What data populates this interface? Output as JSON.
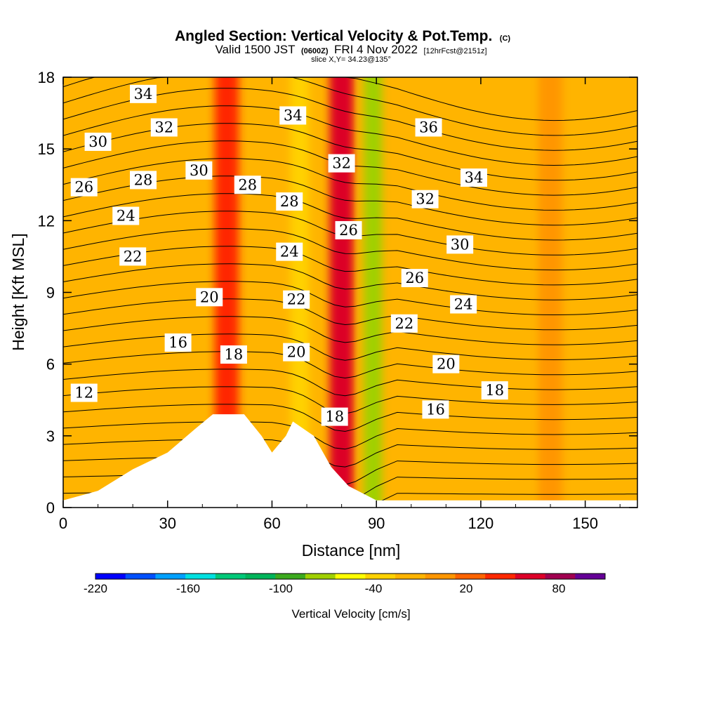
{
  "title": {
    "main": "Angled Section: Vertical Velocity & Pot.Temp.",
    "units_tag": "(C)",
    "valid_prefix": "Valid 1500 JST",
    "utc_tag": "(0600Z)",
    "valid_date": "FRI 4 Nov 2022",
    "forecast_tag": "[12hrFcst@2151z]",
    "slice": "slice X,Y= 34.23@135°"
  },
  "chart_data": {
    "type": "heatmap",
    "xlabel": "Distance [nm]",
    "ylabel": "Height [Kft MSL]",
    "xlim": [
      0,
      165
    ],
    "ylim": [
      0,
      18
    ],
    "x_ticks": [
      "0",
      "30",
      "60",
      "90",
      "120",
      "150"
    ],
    "y_ticks": [
      "0",
      "3",
      "6",
      "9",
      "12",
      "15",
      "18"
    ],
    "colorbar": {
      "title": "Vertical Velocity [cm/s]",
      "tick_labels": [
        "-220",
        "-160",
        "-100",
        "-40",
        "20",
        "80"
      ],
      "tick_values": [
        -220,
        -160,
        -100,
        -40,
        20,
        80
      ],
      "range": [
        -220,
        110
      ],
      "colors": [
        "#0000ff",
        "#0050ff",
        "#00a0ff",
        "#00e0e0",
        "#00c878",
        "#00b45a",
        "#3caa1e",
        "#a0d000",
        "#ffff00",
        "#ffd200",
        "#ffb400",
        "#ff9600",
        "#ff6400",
        "#ff2800",
        "#dc0028",
        "#a00050",
        "#640096"
      ]
    },
    "velocity_bands": [
      {
        "x_center": 47,
        "value": 40
      },
      {
        "x_center": 80,
        "value": 60
      },
      {
        "x_center": 89,
        "value": -70
      },
      {
        "x_center": 68,
        "value": -40
      },
      {
        "x_center": 140,
        "value": 10
      }
    ],
    "terrain": [
      {
        "x": 0,
        "y": 0.3
      },
      {
        "x": 10,
        "y": 0.7
      },
      {
        "x": 20,
        "y": 1.6
      },
      {
        "x": 30,
        "y": 2.3
      },
      {
        "x": 38,
        "y": 3.3
      },
      {
        "x": 43,
        "y": 3.9
      },
      {
        "x": 52,
        "y": 3.9
      },
      {
        "x": 57,
        "y": 3.0
      },
      {
        "x": 60,
        "y": 2.3
      },
      {
        "x": 64,
        "y": 3.0
      },
      {
        "x": 66,
        "y": 3.6
      },
      {
        "x": 72,
        "y": 3.0
      },
      {
        "x": 77,
        "y": 1.7
      },
      {
        "x": 82,
        "y": 0.9
      },
      {
        "x": 90,
        "y": 0.3
      },
      {
        "x": 165,
        "y": 0.3
      }
    ],
    "isentropes": [
      {
        "label": "12",
        "x": 6,
        "y": 4.8
      },
      {
        "label": "16",
        "x": 33,
        "y": 6.9
      },
      {
        "label": "18",
        "x": 49,
        "y": 6.4
      },
      {
        "label": "20",
        "x": 42,
        "y": 8.8
      },
      {
        "label": "22",
        "x": 20,
        "y": 10.5
      },
      {
        "label": "24",
        "x": 18,
        "y": 12.2
      },
      {
        "label": "26",
        "x": 6,
        "y": 13.4
      },
      {
        "label": "28",
        "x": 23,
        "y": 13.7
      },
      {
        "label": "30",
        "x": 10,
        "y": 15.3
      },
      {
        "label": "32",
        "x": 29,
        "y": 15.9
      },
      {
        "label": "34",
        "x": 23,
        "y": 17.3
      },
      {
        "label": "30",
        "x": 39,
        "y": 14.1
      },
      {
        "label": "28",
        "x": 53,
        "y": 13.5
      },
      {
        "label": "28",
        "x": 65,
        "y": 12.8
      },
      {
        "label": "34",
        "x": 66,
        "y": 16.4
      },
      {
        "label": "24",
        "x": 65,
        "y": 10.7
      },
      {
        "label": "22",
        "x": 67,
        "y": 8.7
      },
      {
        "label": "20",
        "x": 67,
        "y": 6.5
      },
      {
        "label": "18",
        "x": 78,
        "y": 3.8
      },
      {
        "label": "26",
        "x": 82,
        "y": 11.6
      },
      {
        "label": "32",
        "x": 80,
        "y": 14.4
      },
      {
        "label": "36",
        "x": 105,
        "y": 15.9
      },
      {
        "label": "34",
        "x": 118,
        "y": 13.8
      },
      {
        "label": "32",
        "x": 104,
        "y": 12.9
      },
      {
        "label": "30",
        "x": 114,
        "y": 11.0
      },
      {
        "label": "26",
        "x": 101,
        "y": 9.6
      },
      {
        "label": "24",
        "x": 115,
        "y": 8.5
      },
      {
        "label": "22",
        "x": 98,
        "y": 7.7
      },
      {
        "label": "20",
        "x": 110,
        "y": 6.0
      },
      {
        "label": "18",
        "x": 124,
        "y": 4.9
      },
      {
        "label": "16",
        "x": 107,
        "y": 4.1
      }
    ]
  }
}
